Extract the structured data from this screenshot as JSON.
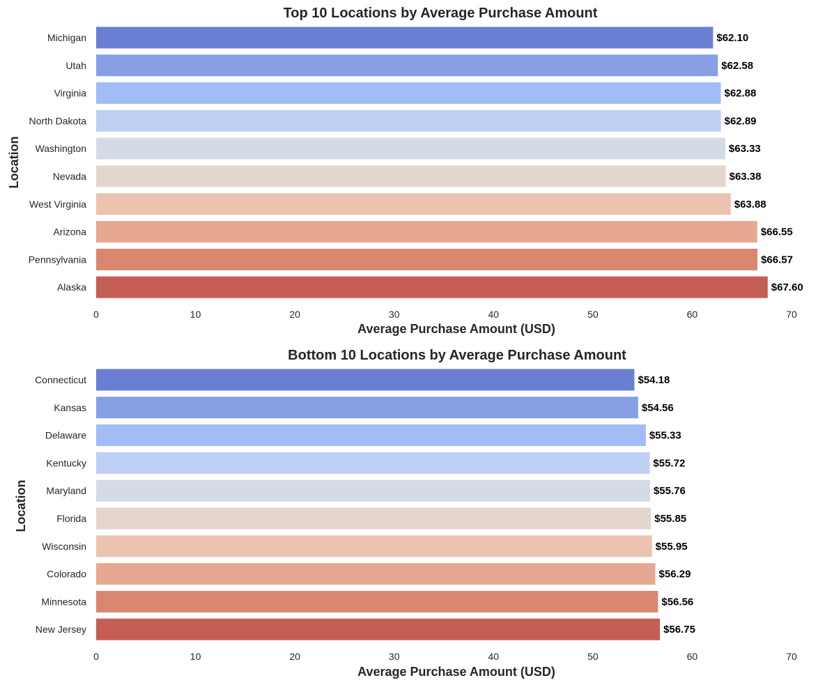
{
  "chart_data": [
    {
      "type": "bar",
      "orientation": "horizontal",
      "title": "Top 10 Locations by Average Purchase Amount",
      "xlabel": "Average Purchase Amount (USD)",
      "ylabel": "Location",
      "xlim": [
        0,
        70
      ],
      "xticks": [
        "0",
        "10",
        "20",
        "30",
        "40",
        "50",
        "60",
        "70"
      ],
      "grid": false,
      "categories": [
        "Michigan",
        "Utah",
        "Virginia",
        "North Dakota",
        "Washington",
        "Nevada",
        "West Virginia",
        "Arizona",
        "Pennsylvania",
        "Alaska"
      ],
      "values": [
        62.1,
        62.58,
        62.88,
        62.89,
        63.33,
        63.38,
        63.88,
        66.55,
        66.57,
        67.6
      ],
      "data_labels": [
        "$62.10",
        "$62.58",
        "$62.88",
        "$62.89",
        "$63.33",
        "$63.38",
        "$63.88",
        "$66.55",
        "$66.57",
        "$67.60"
      ]
    },
    {
      "type": "bar",
      "orientation": "horizontal",
      "title": "Bottom 10 Locations by Average Purchase Amount",
      "xlabel": "Average Purchase Amount (USD)",
      "ylabel": "Location",
      "xlim": [
        0,
        70
      ],
      "xticks": [
        "0",
        "10",
        "20",
        "30",
        "40",
        "50",
        "60",
        "70"
      ],
      "grid": false,
      "categories": [
        "Connecticut",
        "Kansas",
        "Delaware",
        "Kentucky",
        "Maryland",
        "Florida",
        "Wisconsin",
        "Colorado",
        "Minnesota",
        "New Jersey"
      ],
      "values": [
        54.18,
        54.56,
        55.33,
        55.72,
        55.76,
        55.85,
        55.95,
        56.29,
        56.56,
        56.75
      ],
      "data_labels": [
        "$54.18",
        "$54.56",
        "$55.33",
        "$55.72",
        "$55.76",
        "$55.85",
        "$55.95",
        "$56.29",
        "$56.56",
        "$56.75"
      ]
    }
  ],
  "palette": [
    "#6a7fd4",
    "#86a0e6",
    "#a2bcf5",
    "#bdcff3",
    "#d4dae6",
    "#e4d6cf",
    "#ecc3b0",
    "#e7a891",
    "#da8772",
    "#c45e55"
  ]
}
